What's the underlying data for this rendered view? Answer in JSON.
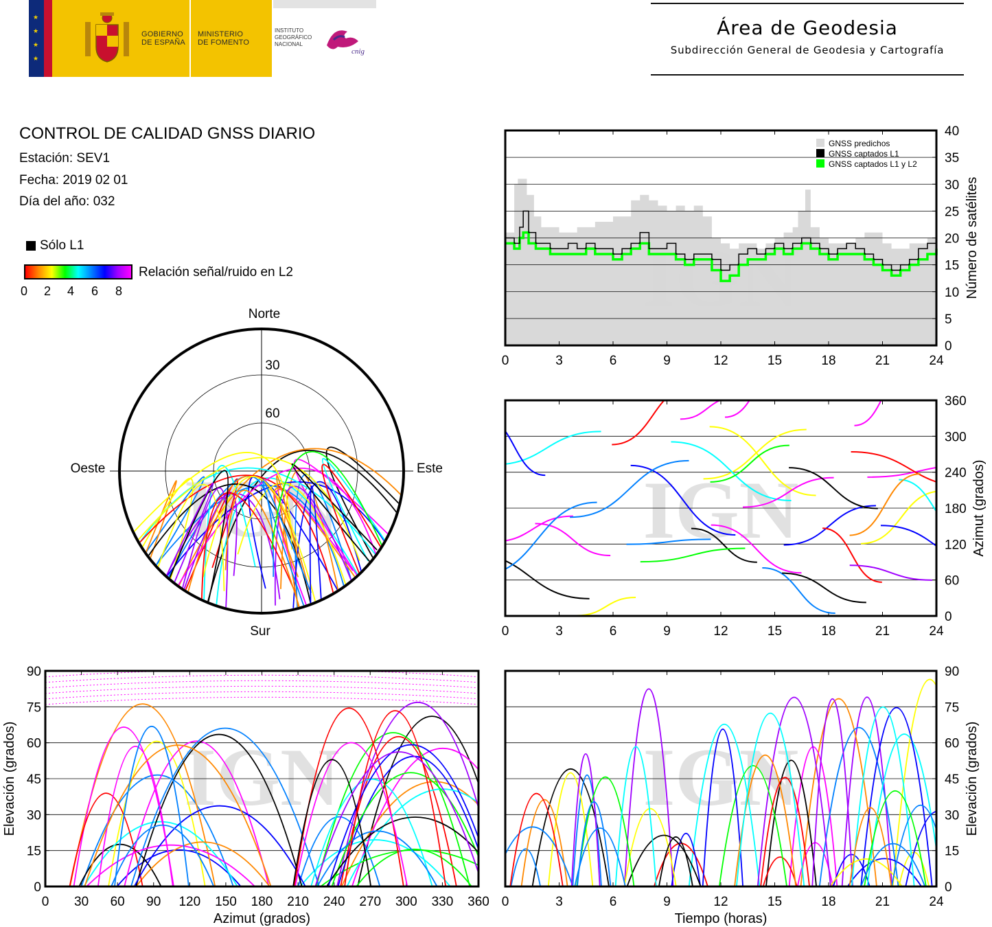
{
  "header": {
    "gov_line1": "GOBIERNO",
    "gov_line2": "DE ESPAÑA",
    "min_line1": "MINISTERIO",
    "min_line2": "DE FOMENTO",
    "ign_line1": "INSTITUTO",
    "ign_line2": "GEOGRÁFICO",
    "ign_line3": "NACIONAL",
    "cnig": "cnig",
    "area_title": "Área de Geodesia",
    "area_subtitle": "Subdirección General de Geodesia y Cartografía"
  },
  "info": {
    "title": "CONTROL DE CALIDAD GNSS DIARIO",
    "station": "Estación: SEV1",
    "date": "Fecha: 2019 02 01",
    "doy": "Día del año: 032",
    "legend_l1": "Sólo L1",
    "snr_label": "Relación señal/ruido en L2",
    "snr_ticks": [
      "0",
      "2",
      "4",
      "6",
      "8"
    ]
  },
  "colors": {
    "l1_only": "#000000",
    "l1l2": "#00ff00",
    "predicted": "#d9d9d9",
    "snr_scale": [
      "#ff0000",
      "#ff8800",
      "#ffff00",
      "#00ff00",
      "#00ffff",
      "#0080ff",
      "#0000ff",
      "#a000ff",
      "#ff00ff"
    ]
  },
  "watermark": "IGN",
  "chart_data": [
    {
      "type": "area",
      "x_ticks": [
        "0",
        "3",
        "6",
        "9",
        "12",
        "15",
        "18",
        "21",
        "24"
      ],
      "y_ticks": [
        "0",
        "5",
        "10",
        "15",
        "20",
        "25",
        "30",
        "35",
        "40"
      ],
      "xlim": [
        0,
        24
      ],
      "ylim": [
        0,
        40
      ],
      "ylabel": "Número de satélites",
      "grid": true,
      "legend_position": "top-right",
      "series": [
        {
          "name": "GNSS predichos",
          "x": [
            0,
            0.5,
            0.7,
            1.2,
            1.6,
            2,
            3,
            3.5,
            4,
            4.5,
            5,
            5.5,
            6,
            6.5,
            7,
            7.5,
            8,
            8.5,
            9,
            9.5,
            10,
            10.5,
            11,
            11.5,
            12,
            12.5,
            13,
            13.5,
            14,
            14.5,
            15,
            15.5,
            16,
            16.3,
            16.7,
            17,
            17.5,
            18,
            18.5,
            19,
            19.5,
            20,
            20.5,
            21,
            21.5,
            22,
            22.5,
            23,
            23.5,
            24
          ],
          "y": [
            21,
            30,
            31,
            28,
            24,
            22,
            21,
            21,
            22,
            22,
            23,
            23,
            24,
            24,
            27,
            28,
            27,
            26,
            25,
            26,
            25,
            26,
            24,
            20,
            19,
            18,
            19,
            19,
            18,
            19,
            20,
            21,
            22,
            25,
            29,
            22,
            20,
            19,
            19,
            19,
            20,
            21,
            21,
            19,
            18,
            18,
            19,
            19,
            20,
            21
          ]
        },
        {
          "name": "GNSS captados L1",
          "x": [
            0,
            0.5,
            0.8,
            1,
            1.3,
            1.7,
            2,
            2.5,
            3,
            3.5,
            4,
            4.5,
            5,
            5.5,
            6,
            6.5,
            7,
            7.5,
            8,
            8.5,
            9,
            9.5,
            10,
            10.5,
            11,
            11.5,
            12,
            12.5,
            13,
            13.5,
            14,
            14.5,
            15,
            15.5,
            16,
            16.5,
            17,
            17.5,
            18,
            18.5,
            19,
            19.5,
            20,
            20.5,
            21,
            21.5,
            22,
            22.5,
            23,
            23.5,
            24
          ],
          "y": [
            20,
            19,
            22,
            25,
            21,
            19,
            19,
            18,
            18,
            19,
            18,
            19,
            18,
            18,
            17,
            18,
            19,
            21,
            18,
            18,
            19,
            17,
            16,
            17,
            17,
            16,
            14,
            15,
            17,
            18,
            17,
            18,
            19,
            18,
            19,
            20,
            19,
            18,
            17,
            18,
            19,
            18,
            17,
            16,
            15,
            14,
            15,
            16,
            18,
            19,
            20
          ]
        },
        {
          "name": "GNSS captados L1 y L2",
          "x": [
            0,
            0.5,
            0.8,
            1,
            1.3,
            1.7,
            2,
            2.5,
            3,
            3.5,
            4,
            4.5,
            5,
            5.5,
            6,
            6.5,
            7,
            7.5,
            8,
            8.5,
            9,
            9.5,
            10,
            10.5,
            11,
            11.5,
            12,
            12.5,
            13,
            13.5,
            14,
            14.5,
            15,
            15.5,
            16,
            16.5,
            17,
            17.5,
            18,
            18.5,
            19,
            19.5,
            20,
            20.5,
            21,
            21.5,
            22,
            22.5,
            23,
            23.5,
            24
          ],
          "y": [
            19,
            18,
            20,
            21,
            19,
            18,
            18,
            17,
            17,
            17,
            17,
            18,
            17,
            17,
            16,
            17,
            18,
            19,
            17,
            17,
            17,
            16,
            15,
            16,
            16,
            14,
            12,
            13,
            15,
            16,
            16,
            17,
            18,
            17,
            18,
            19,
            18,
            17,
            16,
            17,
            17,
            17,
            16,
            15,
            14,
            13,
            14,
            15,
            16,
            17,
            18
          ]
        }
      ]
    },
    {
      "type": "scatter",
      "x_ticks": [
        "0",
        "3",
        "6",
        "9",
        "12",
        "15",
        "18",
        "21",
        "24"
      ],
      "y_ticks": [
        "0",
        "60",
        "120",
        "180",
        "240",
        "300",
        "360"
      ],
      "xlim": [
        0,
        24
      ],
      "ylim": [
        0,
        360
      ],
      "ylabel": "Azimut (grados)",
      "grid": true
    },
    {
      "type": "scatter",
      "x_ticks": [
        "0",
        "30",
        "60",
        "90",
        "120",
        "150",
        "180",
        "210",
        "240",
        "270",
        "300",
        "330",
        "360"
      ],
      "y_ticks": [
        "0",
        "15",
        "30",
        "45",
        "60",
        "75",
        "90"
      ],
      "xlim": [
        0,
        360
      ],
      "ylim": [
        0,
        90
      ],
      "xlabel": "Azimut (grados)",
      "ylabel": "Elevación (grados)",
      "grid": true
    },
    {
      "type": "scatter",
      "x_ticks": [
        "0",
        "3",
        "6",
        "9",
        "12",
        "15",
        "18",
        "21",
        "24"
      ],
      "y_ticks": [
        "0",
        "15",
        "30",
        "45",
        "60",
        "75",
        "90"
      ],
      "xlim": [
        0,
        24
      ],
      "ylim": [
        0,
        90
      ],
      "xlabel": "Tiempo (horas)",
      "ylabel": "Elevación (grados)",
      "grid": true
    },
    {
      "type": "scatter",
      "projection": "polar-skyplot",
      "labels": {
        "north": "Norte",
        "south": "Sur",
        "east": "Este",
        "west": "Oeste"
      },
      "ring_labels": [
        "30",
        "60"
      ]
    }
  ]
}
